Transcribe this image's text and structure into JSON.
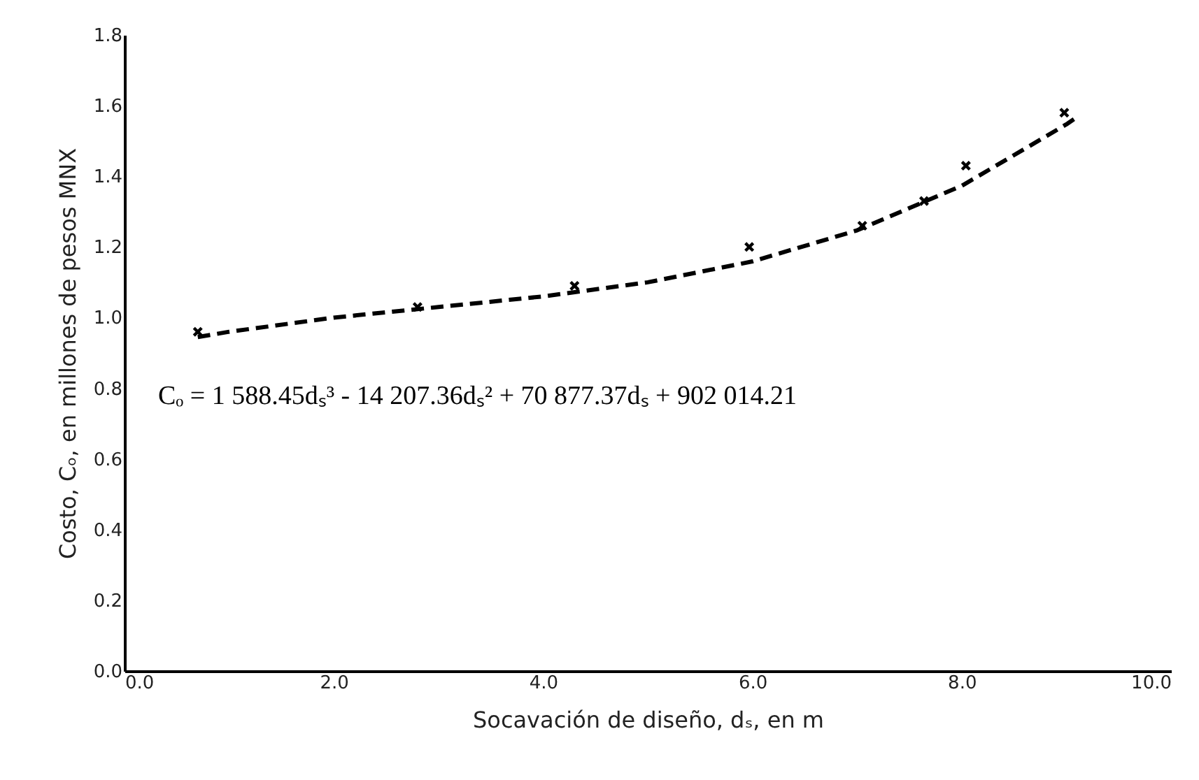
{
  "chart_data": {
    "type": "scatter",
    "xlabel": "Socavación de diseño, dₛ, en m",
    "ylabel": "Costo, Cₒ, en millones de pesos MNX",
    "annotations": [
      "Cₒ = 1 588.45dₛ³ - 14 207.36dₛ² + 70 877.37dₛ + 902 014.21"
    ],
    "xlim": [
      0,
      10
    ],
    "ylim": [
      0,
      1.8
    ],
    "xticks": [
      {
        "value": 0,
        "label": "0.0"
      },
      {
        "value": 2,
        "label": "2.0"
      },
      {
        "value": 4,
        "label": "4.0"
      },
      {
        "value": 6,
        "label": "6.0"
      },
      {
        "value": 8,
        "label": "8.0"
      },
      {
        "value": 10,
        "label": "10.0"
      }
    ],
    "yticks": [
      {
        "value": 0,
        "label": "0.0"
      },
      {
        "value": 0.2,
        "label": "0.2"
      },
      {
        "value": 0.4,
        "label": "0.4"
      },
      {
        "value": 0.6,
        "label": "0.6"
      },
      {
        "value": 0.8,
        "label": "0.8"
      },
      {
        "value": 1,
        "label": "1.0"
      },
      {
        "value": 1.2,
        "label": "1.2"
      },
      {
        "value": 1.4,
        "label": "1.4"
      },
      {
        "value": 1.6,
        "label": "1.6"
      },
      {
        "value": 1.8,
        "label": "1.8"
      }
    ],
    "grid": false,
    "series": [
      {
        "color": "#000000",
        "marker": "cross",
        "x": [
          0.7,
          2.8,
          4.3,
          5.97,
          7.05,
          7.64,
          8.04,
          8.98
        ],
        "values": [
          0.96,
          1.03,
          1.09,
          1.2,
          1.26,
          1.33,
          1.43,
          1.58
        ]
      },
      {
        "type": "line",
        "color": "#000000",
        "marker": "none",
        "line_style": "dashed",
        "x": [
          0.7,
          1,
          2,
          3,
          4,
          5,
          6,
          7,
          8,
          9,
          9.1
        ],
        "values": [
          0.945,
          0.96,
          1.0,
          1.03,
          1.06,
          1.1,
          1.159,
          1.247,
          1.373,
          1.547,
          1.567
        ]
      }
    ]
  }
}
